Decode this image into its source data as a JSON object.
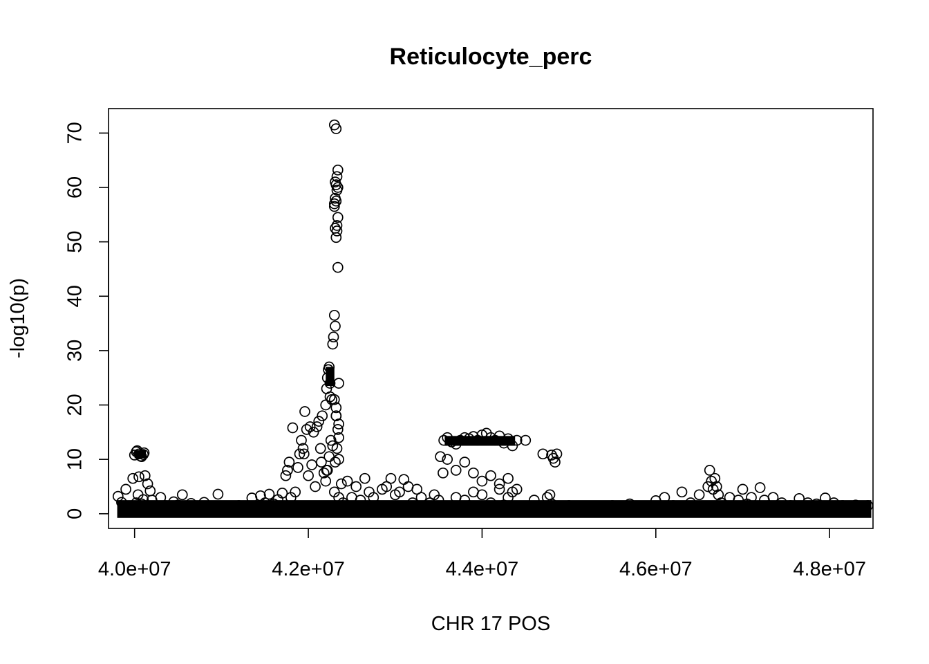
{
  "chart_data": {
    "type": "scatter",
    "title": "Reticulocyte_perc",
    "xlabel": "CHR 17 POS",
    "ylabel": "-log10(p)",
    "xlim": [
      39700000,
      48500000
    ],
    "ylim": [
      -2.7,
      74.5
    ],
    "xticks": [
      40000000,
      42000000,
      44000000,
      46000000,
      48000000
    ],
    "xtick_labels": [
      "4.0e+07",
      "4.2e+07",
      "4.4e+07",
      "4.6e+07",
      "4.8e+07"
    ],
    "yticks": [
      0,
      10,
      20,
      30,
      40,
      50,
      60,
      70
    ],
    "ytick_labels": [
      "0",
      "10",
      "20",
      "30",
      "40",
      "50",
      "60",
      "70"
    ],
    "grid": false,
    "marker": "open-circle",
    "series": [
      {
        "x": [
          39810000,
          39850000,
          39900000,
          39950000,
          39980000,
          40000000,
          40020000,
          40050000,
          40080000,
          40100000,
          40000000,
          40020000,
          40040000,
          40060000,
          40080000,
          40100000,
          40120000,
          40030000,
          40070000,
          40110000,
          40050000,
          40120000,
          40150000,
          40180000,
          40200000,
          40250000,
          40300000,
          40350000,
          40400000,
          40450000,
          40500000,
          40550000,
          40600000,
          40650000,
          40700000,
          40750000,
          40800000,
          40850000,
          40900000,
          40960000,
          41000000,
          41050000,
          41100000,
          41150000,
          41200000,
          41250000,
          41300000,
          41350000,
          41400000,
          41450000,
          41500000,
          41550000,
          41600000,
          41650000,
          41700000,
          41740000,
          41760000,
          41780000,
          41800000,
          41820000,
          41850000,
          41880000,
          41900000,
          41920000,
          41940000,
          41960000,
          41980000,
          42000000,
          42020000,
          42040000,
          42060000,
          42080000,
          42100000,
          42120000,
          42140000,
          42160000,
          42180000,
          42200000,
          42210000,
          42220000,
          42230000,
          42240000,
          42250000,
          42200000,
          42220000,
          42240000,
          42260000,
          42270000,
          42280000,
          42290000,
          42300000,
          42310000,
          42320000,
          42330000,
          42340000,
          42300000,
          42310000,
          42320000,
          42330000,
          42340000,
          42300000,
          42310000,
          42320000,
          42330000,
          42340000,
          42300000,
          42320000,
          42340000,
          42330000,
          42310000,
          42350000,
          42300000,
          42320000,
          42340000,
          42330000,
          42310000,
          42300000,
          42350000,
          42380000,
          42400000,
          42450000,
          42500000,
          42550000,
          42600000,
          42650000,
          42700000,
          42750000,
          42800000,
          42850000,
          42900000,
          42950000,
          43000000,
          43050000,
          43100000,
          43150000,
          43200000,
          43250000,
          43300000,
          43350000,
          43400000,
          43450000,
          43500000,
          43550000,
          43520000,
          43560000,
          43600000,
          43650000,
          43700000,
          43750000,
          43800000,
          43850000,
          43900000,
          43950000,
          44000000,
          44050000,
          44100000,
          44150000,
          44200000,
          44250000,
          44300000,
          44350000,
          44400000,
          43600000,
          43700000,
          43800000,
          43900000,
          44000000,
          44100000,
          44200000,
          44300000,
          44350000,
          43700000,
          43800000,
          43900000,
          44000000,
          44100000,
          44200000,
          44300000,
          43750000,
          43850000,
          43950000,
          44050000,
          44150000,
          44250000,
          44350000,
          44400000,
          44500000,
          44600000,
          44700000,
          44750000,
          44800000,
          44820000,
          44840000,
          44860000,
          44780000,
          44800000,
          44850000,
          44900000,
          44950000,
          45000000,
          45050000,
          45100000,
          45150000,
          45200000,
          45300000,
          45400000,
          45500000,
          45600000,
          45700000,
          45800000,
          45900000,
          46000000,
          46100000,
          46200000,
          46300000,
          46400000,
          46500000,
          46550000,
          46600000,
          46620000,
          46640000,
          46660000,
          46680000,
          46700000,
          46720000,
          46750000,
          46800000,
          46850000,
          46900000,
          46950000,
          47000000,
          47050000,
          47100000,
          47150000,
          47200000,
          47250000,
          47300000,
          47350000,
          47400000,
          47450000,
          47500000,
          47550000,
          47600000,
          47650000,
          47700000,
          47750000,
          47800000,
          47850000,
          47900000,
          47950000,
          48000000,
          48050000,
          48100000,
          48150000,
          48200000,
          48250000,
          48300000,
          48350000,
          48400000,
          48440000,
          42350000,
          42350000,
          42350000,
          42320000,
          42320000,
          41950000,
          42150000,
          42250000,
          42210000,
          42280000
        ],
        "y": [
          3.2,
          2.1,
          4.5,
          1.2,
          6.5,
          10.8,
          11.4,
          11.0,
          10.5,
          10.9,
          1.0,
          2.0,
          3.5,
          0.5,
          1.8,
          2.6,
          0.9,
          11.6,
          10.6,
          11.2,
          6.8,
          7.0,
          5.5,
          4.2,
          2.5,
          1.0,
          3.0,
          1.5,
          0.8,
          2.2,
          1.6,
          3.5,
          0.7,
          1.9,
          0.6,
          1.2,
          2.1,
          0.9,
          0.5,
          3.6,
          0.8,
          1.2,
          0.4,
          0.9,
          1.5,
          0.6,
          1.1,
          2.9,
          1.4,
          3.3,
          2.0,
          3.6,
          1.8,
          2.6,
          3.8,
          7.0,
          8.0,
          9.5,
          3.0,
          15.8,
          4.0,
          8.5,
          11.0,
          13.5,
          12.0,
          18.8,
          15.5,
          7.0,
          16.0,
          9.0,
          15.0,
          5.0,
          16.0,
          17.0,
          12.0,
          18.0,
          7.5,
          20.0,
          23.0,
          25.0,
          26.5,
          27.0,
          24.0,
          6.0,
          8.0,
          10.5,
          13.5,
          21.0,
          31.2,
          32.5,
          36.5,
          34.5,
          50.8,
          52.0,
          54.5,
          56.5,
          58.0,
          60.5,
          62.0,
          63.2,
          57.0,
          61.0,
          57.5,
          53.0,
          45.3,
          71.5,
          70.8,
          60.0,
          59.5,
          52.5,
          24.0,
          21.0,
          18.0,
          15.5,
          12.0,
          9.5,
          4.0,
          3.0,
          5.5,
          2.0,
          6.0,
          3.0,
          5.0,
          2.5,
          6.5,
          4.0,
          3.0,
          1.5,
          4.5,
          5.0,
          6.5,
          3.5,
          4.0,
          6.3,
          5.0,
          2.0,
          4.5,
          3.0,
          1.0,
          2.0,
          3.5,
          2.5,
          7.5,
          10.5,
          13.5,
          14.0,
          13.2,
          12.8,
          13.5,
          14.0,
          13.8,
          14.2,
          13.5,
          14.5,
          14.8,
          14.0,
          13.5,
          14.3,
          13.0,
          13.8,
          12.5,
          13.5,
          10.0,
          8.0,
          9.5,
          7.5,
          6.0,
          7.0,
          5.5,
          6.5,
          4.0,
          3.0,
          2.5,
          4.0,
          3.5,
          2.0,
          4.5,
          3.0,
          0.8,
          1.5,
          0.5,
          1.2,
          0.9,
          1.6,
          0.7,
          4.5,
          13.5,
          2.5,
          11.0,
          3.0,
          10.8,
          10.2,
          9.5,
          11.0,
          3.5,
          1.8,
          0.8,
          1.2,
          0.5,
          1.5,
          0.9,
          0.6,
          1.0,
          0.4,
          1.3,
          0.8,
          1.5,
          0.9,
          1.8,
          1.2,
          0.7,
          2.4,
          3.0,
          1.5,
          4.0,
          2.0,
          3.5,
          1.0,
          5.0,
          8.0,
          6.0,
          4.5,
          6.5,
          5.0,
          3.5,
          2.0,
          1.5,
          3.0,
          1.0,
          2.5,
          4.5,
          1.8,
          3.0,
          1.0,
          4.8,
          2.5,
          1.5,
          3.0,
          1.2,
          2.0,
          0.8,
          1.5,
          1.2,
          2.8,
          0.9,
          2.0,
          0.6,
          1.8,
          1.4,
          2.9,
          1.0,
          2.0,
          0.8,
          1.5,
          1.2,
          0.9,
          1.6,
          0.7,
          1.0,
          1.5,
          16.5,
          14.0,
          10.0,
          18.0,
          19.5,
          11.0,
          9.5,
          21.5,
          8.0,
          12.5
        ]
      }
    ]
  }
}
